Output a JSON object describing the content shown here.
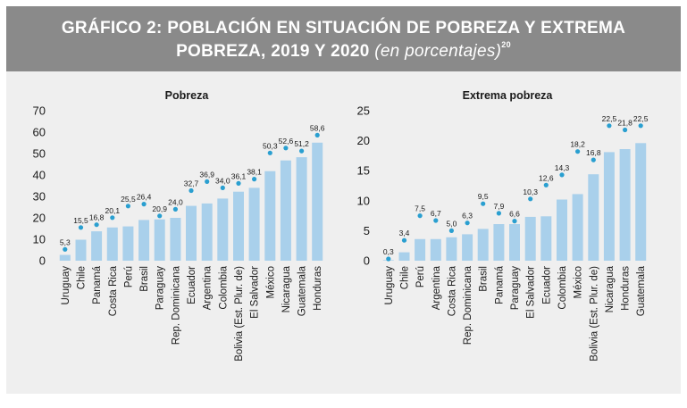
{
  "header": {
    "line1": "GRÁFICO 2: POBLACIÓN EN SITUACIÓN DE POBREZA Y EXTREMA",
    "line2_main": "POBREZA, 2019 Y 2020",
    "line2_sub": "(en porcentajes)",
    "footnote": "20"
  },
  "colors": {
    "bar": "#a9d0eb",
    "dot": "#2a9fd0",
    "text": "#1a1a1a",
    "panel": "#efefef",
    "header": "#8a8a8a"
  },
  "chart_data": [
    {
      "type": "bar",
      "title": "Pobreza",
      "ylim": [
        0,
        70
      ],
      "yticks": [
        0,
        10,
        20,
        30,
        40,
        50,
        60,
        70
      ],
      "categories": [
        "Uruguay",
        "Chile",
        "Panamá",
        "Costa Rica",
        "Perú",
        "Brasil",
        "Paraguay",
        "Rep. Dominicana",
        "Ecuador",
        "Argentina",
        "Colombia",
        "Bolivia (Est. Plur. de)",
        "El Salvador",
        "México",
        "Nicaragua",
        "Guatemala",
        "Honduras"
      ],
      "series": [
        {
          "values": [
            2.7,
            9.8,
            13.7,
            15.5,
            16.0,
            19.0,
            19.3,
            20.0,
            25.6,
            26.7,
            29.0,
            32.2,
            34.0,
            41.8,
            46.8,
            48.3,
            55.1
          ]
        },
        {
          "values": [
            5.3,
            15.5,
            16.8,
            20.1,
            25.5,
            26.4,
            20.9,
            24.0,
            32.7,
            36.9,
            34.0,
            36.1,
            38.1,
            50.3,
            52.6,
            51.2,
            58.6
          ]
        }
      ],
      "data_labels": [
        "5,3",
        "15,5",
        "16,8",
        "20,1",
        "25,5",
        "26,4",
        "20,9",
        "24,0",
        "32,7",
        "36,9",
        "34,0",
        "36,1",
        "38,1",
        "50,3",
        "52,6",
        "51,2",
        "58,6"
      ]
    },
    {
      "type": "bar",
      "title": "Extrema pobreza",
      "ylim": [
        0,
        25
      ],
      "yticks": [
        0,
        5,
        10,
        15,
        20,
        25
      ],
      "categories": [
        "Uruguay",
        "Chile",
        "Perú",
        "Argentina",
        "Costa Rica",
        "Rep. Dominicana",
        "Brasil",
        "Panamá",
        "Paraguay",
        "El Salvador",
        "Ecuador",
        "Colombia",
        "México",
        "Bolivia (Est. Plur. de)",
        "Nicaragua",
        "Honduras",
        "Guatemala"
      ],
      "series": [
        {
          "values": [
            0.1,
            1.4,
            3.6,
            3.6,
            3.9,
            4.4,
            5.3,
            6.1,
            6.1,
            7.3,
            7.4,
            10.2,
            11.1,
            14.4,
            18.1,
            18.6,
            19.6
          ]
        },
        {
          "values": [
            0.3,
            3.4,
            7.5,
            6.7,
            5.0,
            6.3,
            9.5,
            7.9,
            6.6,
            10.3,
            12.6,
            14.3,
            18.2,
            16.8,
            22.5,
            21.8,
            22.5
          ]
        }
      ],
      "data_labels": [
        "0,3",
        "3,4",
        "7,5",
        "6,7",
        "5,0",
        "6,3",
        "9,5",
        "7,9",
        "6,6",
        "10,3",
        "12,6",
        "14,3",
        "18,2",
        "16,8",
        "22,5",
        "21,8",
        "22,5"
      ]
    }
  ]
}
